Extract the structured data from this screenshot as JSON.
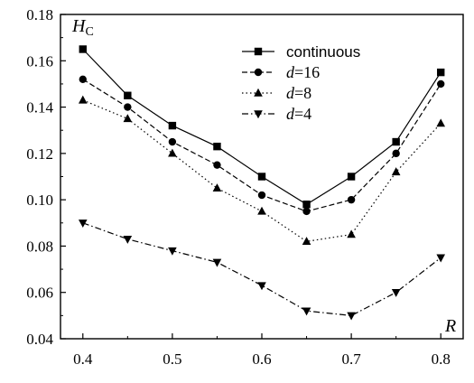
{
  "chart_data": {
    "type": "line",
    "xlabel": "R",
    "ylabel": "H",
    "ylabel_sub": "C",
    "x": [
      0.4,
      0.45,
      0.5,
      0.55,
      0.6,
      0.65,
      0.7,
      0.75,
      0.8
    ],
    "xlim": [
      0.375,
      0.825
    ],
    "ylim": [
      0.04,
      0.18
    ],
    "xticks": [
      0.4,
      0.5,
      0.6,
      0.7,
      0.8
    ],
    "xtick_labels": [
      "0.4",
      "0.5",
      "0.6",
      "0.7",
      "0.8"
    ],
    "yticks": [
      0.04,
      0.06,
      0.08,
      0.1,
      0.12,
      0.14,
      0.16,
      0.18
    ],
    "ytick_labels": [
      "0.04",
      "0.06",
      "0.08",
      "0.10",
      "0.12",
      "0.14",
      "0.16",
      "0.18"
    ],
    "grid": false,
    "legend_position": "top-right",
    "series": [
      {
        "name": "continuous",
        "label_parts": [
          {
            "text": "continuous",
            "style": "plain"
          }
        ],
        "marker": "square",
        "dash": "solid",
        "values": [
          0.165,
          0.145,
          0.132,
          0.123,
          0.11,
          0.098,
          0.11,
          0.125,
          0.155
        ]
      },
      {
        "name": "d=16",
        "label_parts": [
          {
            "text": "d",
            "style": "italic"
          },
          {
            "text": "=16",
            "style": "roman"
          }
        ],
        "marker": "circle",
        "dash": "dashed",
        "values": [
          0.152,
          0.14,
          0.125,
          0.115,
          0.102,
          0.095,
          0.1,
          0.12,
          0.15
        ]
      },
      {
        "name": "d=8",
        "label_parts": [
          {
            "text": "d",
            "style": "italic"
          },
          {
            "text": "=8",
            "style": "roman"
          }
        ],
        "marker": "triangle-up",
        "dash": "dotted",
        "values": [
          0.143,
          0.135,
          0.12,
          0.105,
          0.095,
          0.082,
          0.085,
          0.112,
          0.133
        ]
      },
      {
        "name": "d=4",
        "label_parts": [
          {
            "text": "d",
            "style": "italic"
          },
          {
            "text": "=4",
            "style": "roman"
          }
        ],
        "marker": "triangle-down",
        "dash": "dashdot",
        "values": [
          0.09,
          0.083,
          0.078,
          0.073,
          0.063,
          0.052,
          0.05,
          0.06,
          0.075
        ]
      }
    ]
  }
}
